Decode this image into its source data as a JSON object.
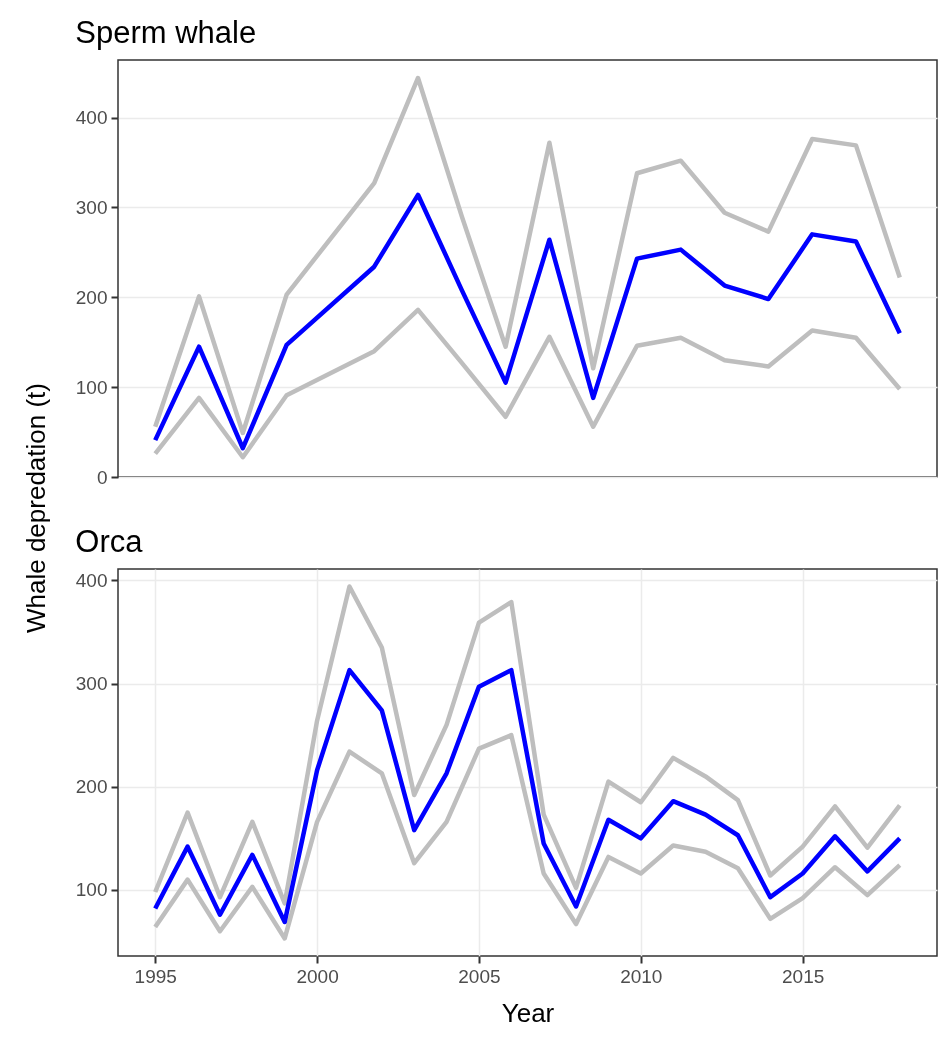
{
  "chart_data": [
    {
      "type": "line",
      "title": "Sperm whale",
      "ylabel": "Whale depredation (t)",
      "categories": [
        null,
        null,
        null,
        null,
        null,
        null,
        null,
        null,
        null,
        null,
        null,
        null,
        null,
        null,
        null,
        null,
        null,
        null
      ],
      "ylim": [
        0,
        464
      ],
      "yticks": [
        0,
        100,
        200,
        300,
        400
      ],
      "tick_labels": "y",
      "grid": "y",
      "series": [
        {
          "color": "#bebebe",
          "values": [
            56,
            201,
            49,
            203,
            null,
            327,
            444,
            290,
            145,
            372,
            121,
            338,
            352,
            294,
            273,
            376,
            369,
            222
          ]
        },
        {
          "color": "#bebebe",
          "values": [
            26,
            88,
            22,
            91,
            null,
            140,
            186,
            127,
            67,
            156,
            56,
            146,
            155,
            130,
            123,
            163,
            155,
            98
          ]
        },
        {
          "color": "#0000ff",
          "values": [
            41,
            145,
            32,
            147,
            null,
            234,
            314,
            208,
            105,
            264,
            88,
            243,
            253,
            213,
            198,
            270,
            262,
            160
          ]
        }
      ]
    },
    {
      "type": "line",
      "title": "Orca",
      "xlabel": "Year",
      "x": [
        1995,
        1996,
        1997,
        1998,
        1999,
        2000,
        2001,
        2002,
        2003,
        2004,
        2005,
        2006,
        2007,
        2008,
        2009,
        2010,
        2011,
        2012,
        2013,
        2014,
        2015,
        2016,
        2017,
        2018
      ],
      "xlim": [
        1993.85,
        2019.15
      ],
      "xticks": [
        1995,
        2000,
        2005,
        2010,
        2015
      ],
      "ylim": [
        36,
        411
      ],
      "yticks": [
        100,
        200,
        300,
        400
      ],
      "grid": true,
      "series": [
        {
          "color": "#bebebe",
          "values": [
            98,
            175,
            93,
            166,
            87,
            264,
            394,
            335,
            192,
            260,
            359,
            379,
            173,
            102,
            205,
            185,
            228,
            210,
            187,
            114,
            142,
            181,
            141,
            182
          ]
        },
        {
          "color": "#bebebe",
          "values": [
            64,
            110,
            60,
            103,
            53,
            166,
            234,
            213,
            126,
            166,
            237,
            250,
            116,
            67,
            132,
            116,
            143,
            137,
            121,
            72,
            92,
            122,
            95,
            124
          ]
        },
        {
          "color": "#0000ff",
          "values": [
            82,
            142,
            76,
            134,
            69,
            216,
            313,
            274,
            158,
            213,
            297,
            313,
            145,
            84,
            168,
            150,
            186,
            173,
            153,
            93,
            116,
            152,
            118,
            150
          ]
        }
      ]
    }
  ]
}
